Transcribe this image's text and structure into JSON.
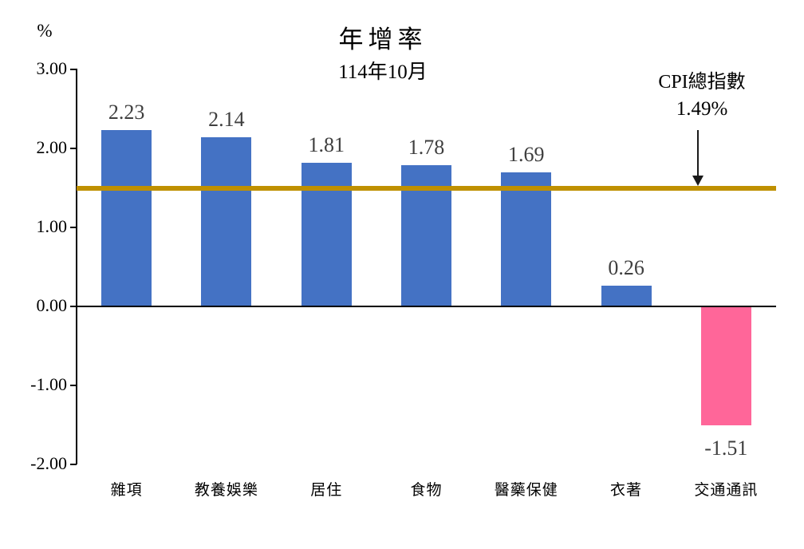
{
  "chart": {
    "title": "年增率",
    "subtitle": "114年10月",
    "unit_label": "%",
    "reference_annotation": {
      "label": "CPI總指數",
      "value_label": "1.49%"
    }
  },
  "chart_data": {
    "type": "bar",
    "title": "年增率",
    "subtitle": "114年10月",
    "xlabel": "",
    "ylabel": "%",
    "categories": [
      "雜項",
      "教養娛樂",
      "居住",
      "食物",
      "醫藥保健",
      "衣著",
      "交通通訊"
    ],
    "values": [
      2.23,
      2.14,
      1.81,
      1.78,
      1.69,
      0.26,
      -1.51
    ],
    "value_labels": [
      "2.23",
      "2.14",
      "1.81",
      "1.78",
      "1.69",
      "0.26",
      "-1.51"
    ],
    "bar_color_positive": "#4472C4",
    "bar_color_negative": "#FF6699",
    "ylim": [
      -2.0,
      3.0
    ],
    "ytick_values": [
      3,
      2,
      1,
      0,
      -1,
      -2
    ],
    "ytick_labels": [
      "3.00",
      "2.00",
      "1.00",
      "0.00",
      "-1.00",
      "-2.00"
    ],
    "grid": false,
    "legend": "none",
    "reference_line": {
      "value": 1.49,
      "label": "CPI總指數",
      "value_label": "1.49%",
      "color": "#BF9000"
    }
  }
}
